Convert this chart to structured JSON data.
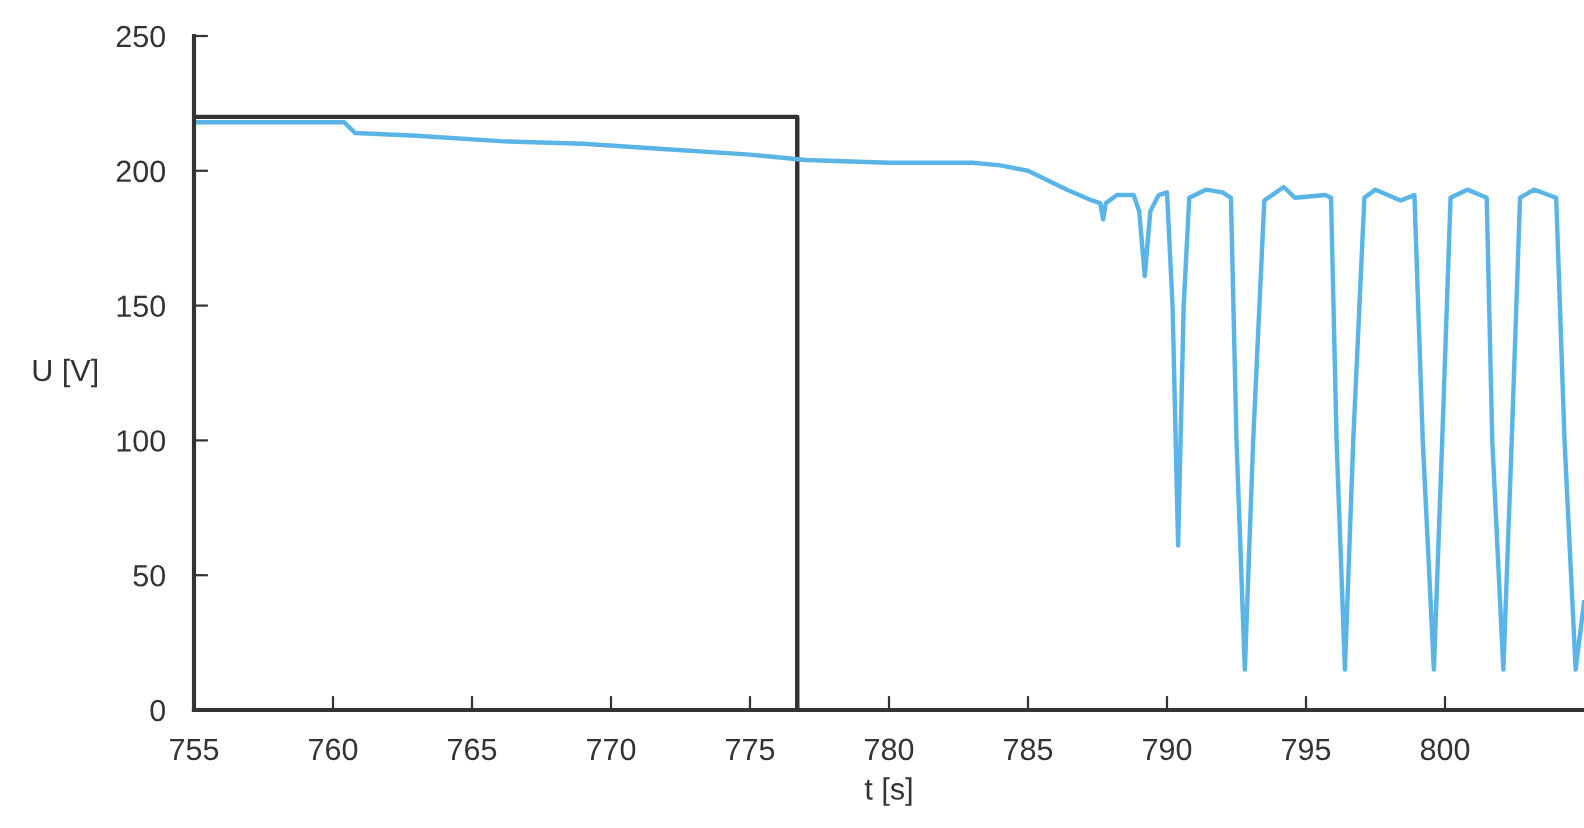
{
  "chart_data": {
    "type": "line",
    "xlabel": "t [s]",
    "ylabel": "U [V]",
    "xlim": [
      755,
      805
    ],
    "xticks": [
      755,
      760,
      765,
      770,
      775,
      780,
      785,
      790,
      795,
      800
    ],
    "ylim": [
      0,
      250
    ],
    "yticks": [
      0,
      50,
      100,
      150,
      200,
      250
    ],
    "grid": false,
    "marker": "none",
    "line_style": "solid",
    "series": [
      {
        "color": "#333333",
        "x": [
          755,
          776.7,
          776.7
        ],
        "values": [
          220,
          220,
          0
        ]
      },
      {
        "color": "#5ab4e5",
        "x": [
          755,
          760.4,
          760.8,
          763,
          766,
          769,
          772,
          775,
          777,
          780,
          783,
          784,
          785,
          786.4,
          787.3,
          787.6,
          787.7,
          787.8,
          788.2,
          788.8,
          789.0,
          789.2,
          789.4,
          789.7,
          790.0,
          790.2,
          790.4,
          790.6,
          790.8,
          791.4,
          792.0,
          792.3,
          792.5,
          792.8,
          793.1,
          793.5,
          794.2,
          794.6,
          795.7,
          795.9,
          796.1,
          796.4,
          796.7,
          797.1,
          797.5,
          798.4,
          798.9,
          799.2,
          799.6,
          799.9,
          800.2,
          800.8,
          801.5,
          801.7,
          802.1,
          802.4,
          802.7,
          803.2,
          804.0,
          804.3,
          804.7,
          805
        ],
        "values": [
          218,
          218,
          214,
          213,
          211,
          210,
          208,
          206,
          204,
          203,
          203,
          202,
          200,
          193,
          189,
          188,
          182,
          188,
          191,
          191,
          185,
          161,
          185,
          191,
          192,
          150,
          61,
          150,
          190,
          193,
          192,
          190,
          100,
          15,
          100,
          189,
          194,
          190,
          191,
          190,
          100,
          15,
          100,
          190,
          193,
          189,
          191,
          100,
          15,
          100,
          190,
          193,
          190,
          100,
          15,
          100,
          190,
          193,
          190,
          100,
          15,
          40
        ]
      }
    ]
  }
}
